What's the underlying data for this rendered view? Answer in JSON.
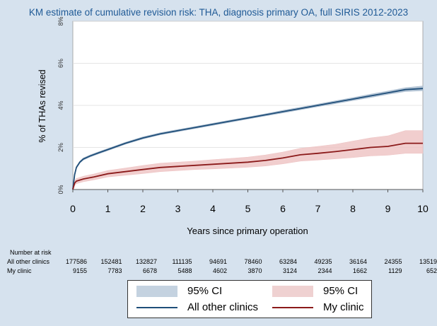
{
  "chart_data": {
    "type": "line",
    "title": "KM estimate of cumulative revision risk: THA, diagnosis primary OA, full SIRIS 2012-2023",
    "xlabel": "Years since primary operation",
    "ylabel": "% of THAs revised",
    "xlim": [
      0,
      10
    ],
    "ylim": [
      0,
      8
    ],
    "xticks": [
      "0",
      "1",
      "2",
      "3",
      "4",
      "5",
      "6",
      "7",
      "8",
      "9",
      "10"
    ],
    "yticks": [
      "0%",
      "2%",
      "4%",
      "6%",
      "8%"
    ],
    "grid": "horizontal",
    "series": [
      {
        "name": "All other clinics",
        "color": "#1f4e79",
        "ci_color": "#a9bccf",
        "x": [
          0,
          0.05,
          0.1,
          0.2,
          0.3,
          0.5,
          0.75,
          1,
          1.5,
          2,
          2.5,
          3,
          3.5,
          4,
          4.5,
          5,
          5.5,
          6,
          6.5,
          7,
          7.5,
          8,
          8.5,
          9,
          9.5,
          10
        ],
        "y": [
          0,
          0.7,
          1.05,
          1.3,
          1.45,
          1.6,
          1.75,
          1.9,
          2.2,
          2.45,
          2.65,
          2.8,
          2.95,
          3.1,
          3.25,
          3.4,
          3.55,
          3.7,
          3.85,
          4.0,
          4.15,
          4.3,
          4.45,
          4.6,
          4.75,
          4.8
        ],
        "lower": [
          0,
          0.65,
          1.0,
          1.25,
          1.4,
          1.55,
          1.7,
          1.85,
          2.15,
          2.4,
          2.6,
          2.75,
          2.9,
          3.05,
          3.2,
          3.35,
          3.5,
          3.64,
          3.79,
          3.94,
          4.08,
          4.23,
          4.37,
          4.52,
          4.66,
          4.7
        ],
        "upper": [
          0,
          0.75,
          1.1,
          1.35,
          1.5,
          1.65,
          1.8,
          1.95,
          2.25,
          2.5,
          2.7,
          2.85,
          3.0,
          3.15,
          3.3,
          3.45,
          3.6,
          3.76,
          3.91,
          4.06,
          4.22,
          4.37,
          4.53,
          4.68,
          4.84,
          4.92
        ]
      },
      {
        "name": "My clinic",
        "color": "#8b1a1a",
        "ci_color": "#eec5c5",
        "x": [
          0,
          0.05,
          0.1,
          0.3,
          0.6,
          1,
          1.5,
          2,
          2.5,
          3,
          3.5,
          4,
          4.5,
          5,
          5.5,
          6,
          6.5,
          7,
          7.5,
          8,
          8.5,
          9,
          9.5,
          10
        ],
        "y": [
          0,
          0.3,
          0.4,
          0.5,
          0.6,
          0.75,
          0.85,
          0.95,
          1.05,
          1.1,
          1.15,
          1.2,
          1.25,
          1.3,
          1.38,
          1.5,
          1.65,
          1.72,
          1.8,
          1.9,
          2.0,
          2.05,
          2.2,
          2.2
        ],
        "lower": [
          0,
          0.2,
          0.28,
          0.37,
          0.46,
          0.6,
          0.68,
          0.76,
          0.85,
          0.9,
          0.95,
          0.98,
          1.02,
          1.06,
          1.12,
          1.22,
          1.35,
          1.4,
          1.46,
          1.52,
          1.6,
          1.63,
          1.72,
          1.72
        ],
        "upper": [
          0,
          0.4,
          0.52,
          0.63,
          0.74,
          0.9,
          1.02,
          1.14,
          1.25,
          1.3,
          1.35,
          1.42,
          1.48,
          1.54,
          1.64,
          1.78,
          1.96,
          2.05,
          2.15,
          2.3,
          2.45,
          2.55,
          2.8,
          2.8
        ]
      }
    ],
    "legend": {
      "position": "bottom",
      "ci_label": "95% CI",
      "entries": [
        "All other clinics",
        "My clinic"
      ]
    }
  },
  "risk_table": {
    "title": "Number at risk",
    "rows": [
      {
        "label": "All other clinics",
        "values": [
          "177586",
          "152481",
          "132827",
          "111135",
          "94691",
          "78460",
          "63284",
          "49235",
          "36164",
          "24355",
          "13519"
        ]
      },
      {
        "label": "My clinic",
        "values": [
          "9155",
          "7783",
          "6678",
          "5488",
          "4602",
          "3870",
          "3124",
          "2344",
          "1662",
          "1129",
          "652"
        ]
      }
    ]
  }
}
